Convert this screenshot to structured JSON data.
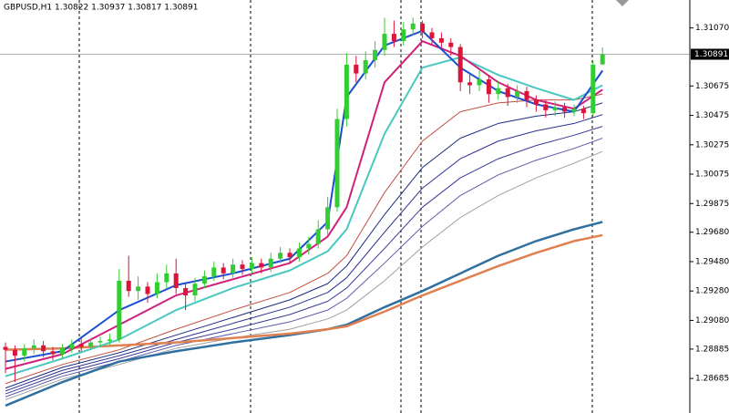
{
  "chart_data": {
    "type": "candlestick",
    "title": "GBPUSD,H1  1.30822 1.30937 1.30817 1.30891",
    "up_color": "#32cd32",
    "down_color": "#dc143c",
    "ylim": [
      1.2845,
      1.3126
    ],
    "yticks": [
      {
        "value": 1.3107,
        "label": "1.31070"
      },
      {
        "value": 1.30675,
        "label": "1.30675"
      },
      {
        "value": 1.30475,
        "label": "1.30475"
      },
      {
        "value": 1.30275,
        "label": "1.30275"
      },
      {
        "value": 1.30075,
        "label": "1.30075"
      },
      {
        "value": 1.29875,
        "label": "1.29875"
      },
      {
        "value": 1.2968,
        "label": "1.29680"
      },
      {
        "value": 1.2948,
        "label": "1.29480"
      },
      {
        "value": 1.2928,
        "label": "1.29280"
      },
      {
        "value": 1.2908,
        "label": "1.29080"
      },
      {
        "value": 1.28885,
        "label": "1.28885"
      },
      {
        "value": 1.28685,
        "label": "1.28685"
      }
    ],
    "current_price": {
      "value": 1.30891,
      "label": "1.30891"
    },
    "open": [
      1.289,
      1.2888,
      1.2884,
      1.2889,
      1.2891,
      1.2887,
      1.2885,
      1.2889,
      1.2892,
      1.289,
      1.2893,
      1.2894,
      1.2895,
      1.2935,
      1.2928,
      1.2931,
      1.2926,
      1.2934,
      1.294,
      1.293,
      1.2925,
      1.2933,
      1.2938,
      1.2944,
      1.294,
      1.2946,
      1.2943,
      1.2947,
      1.2944,
      1.295,
      1.2954,
      1.2951,
      1.2957,
      1.296,
      1.297,
      1.2985,
      1.3045,
      1.3082,
      1.3076,
      1.3085,
      1.3092,
      1.3103,
      1.3098,
      1.3106,
      1.311,
      1.3104,
      1.31,
      1.3097,
      1.3094,
      1.307,
      1.3068,
      1.3072,
      1.3062,
      1.3066,
      1.306,
      1.3064,
      1.3058,
      1.3055,
      1.3051,
      1.3053,
      1.305,
      1.3052,
      1.3049,
      1.30822
    ],
    "high": [
      1.2893,
      1.2891,
      1.2892,
      1.2895,
      1.2894,
      1.289,
      1.2892,
      1.2895,
      1.2896,
      1.2896,
      1.2897,
      1.2899,
      1.2943,
      1.2952,
      1.2938,
      1.2934,
      1.294,
      1.2946,
      1.295,
      1.2933,
      1.2937,
      1.2942,
      1.2948,
      1.2947,
      1.295,
      1.2949,
      1.2951,
      1.295,
      1.2954,
      1.2958,
      1.2957,
      1.2961,
      1.2965,
      1.2976,
      1.2992,
      1.3052,
      1.309,
      1.3088,
      1.3091,
      1.3098,
      1.3114,
      1.3112,
      1.3111,
      1.3114,
      1.3112,
      1.3107,
      1.3104,
      1.31,
      1.3096,
      1.3076,
      1.3078,
      1.3075,
      1.3071,
      1.3069,
      1.3068,
      1.3067,
      1.3061,
      1.3058,
      1.3057,
      1.3056,
      1.3055,
      1.3054,
      1.3085,
      1.30937
    ],
    "low": [
      1.2872,
      1.2866,
      1.288,
      1.2885,
      1.2883,
      1.2881,
      1.2882,
      1.2886,
      1.2887,
      1.2888,
      1.289,
      1.2891,
      1.2893,
      1.2924,
      1.2922,
      1.292,
      1.2923,
      1.293,
      1.2926,
      1.2915,
      1.2921,
      1.293,
      1.2935,
      1.2936,
      1.2937,
      1.2939,
      1.294,
      1.294,
      1.2941,
      1.2947,
      1.2947,
      1.2948,
      1.2953,
      1.2957,
      1.2966,
      1.2982,
      1.304,
      1.307,
      1.3072,
      1.308,
      1.3088,
      1.3094,
      1.3095,
      1.3102,
      1.31,
      1.3096,
      1.3093,
      1.3088,
      1.3064,
      1.3062,
      1.3064,
      1.3056,
      1.3058,
      1.3054,
      1.3056,
      1.3053,
      1.305,
      1.3046,
      1.3047,
      1.3046,
      1.3047,
      1.3045,
      1.3047,
      1.30817
    ],
    "close": [
      1.2888,
      1.2884,
      1.2889,
      1.2891,
      1.2887,
      1.2885,
      1.2889,
      1.2892,
      1.289,
      1.2893,
      1.2894,
      1.2895,
      1.2935,
      1.2928,
      1.2931,
      1.2926,
      1.2934,
      1.294,
      1.293,
      1.2925,
      1.2933,
      1.2938,
      1.2944,
      1.294,
      1.2946,
      1.2943,
      1.2947,
      1.2944,
      1.295,
      1.2954,
      1.2951,
      1.2957,
      1.296,
      1.297,
      1.2985,
      1.3045,
      1.3082,
      1.3076,
      1.3085,
      1.3092,
      1.3103,
      1.3098,
      1.3106,
      1.311,
      1.3104,
      1.31,
      1.3097,
      1.3094,
      1.307,
      1.3068,
      1.3072,
      1.3062,
      1.3066,
      1.306,
      1.3064,
      1.3058,
      1.3055,
      1.3051,
      1.3053,
      1.305,
      1.3052,
      1.3049,
      1.3082,
      1.30891
    ],
    "ma_x": [
      0,
      6,
      12,
      18,
      24,
      30,
      34,
      36,
      40,
      44,
      48,
      52,
      56,
      60,
      63
    ],
    "series": [
      {
        "color": "#a0a0a0",
        "width": 1,
        "values": [
          1.2854,
          1.2868,
          1.2878,
          1.2889,
          1.2896,
          1.2902,
          1.2909,
          1.2915,
          1.2935,
          1.2958,
          1.2978,
          1.2993,
          1.3005,
          1.3015,
          1.3023
        ]
      },
      {
        "color": "#5a5aa8",
        "width": 1,
        "values": [
          1.2856,
          1.287,
          1.288,
          1.2891,
          1.2899,
          1.2907,
          1.2915,
          1.2923,
          1.2947,
          1.2972,
          1.2993,
          1.3007,
          1.3017,
          1.3025,
          1.3032
        ]
      },
      {
        "color": "#3a3a98",
        "width": 1,
        "values": [
          1.2858,
          1.2872,
          1.2882,
          1.2893,
          1.2902,
          1.2912,
          1.2921,
          1.293,
          1.2957,
          1.2985,
          1.3005,
          1.3018,
          1.3027,
          1.3034,
          1.304
        ]
      },
      {
        "color": "#2a3090",
        "width": 1,
        "values": [
          1.286,
          1.2874,
          1.2884,
          1.2895,
          1.2906,
          1.2917,
          1.2927,
          1.2937,
          1.2968,
          1.2998,
          1.3018,
          1.303,
          1.3037,
          1.3042,
          1.3048
        ]
      },
      {
        "color": "#1a2a80",
        "width": 1,
        "values": [
          1.2862,
          1.2876,
          1.2886,
          1.2898,
          1.291,
          1.2922,
          1.2933,
          1.2945,
          1.298,
          1.3012,
          1.3032,
          1.3042,
          1.3047,
          1.305,
          1.3056
        ]
      },
      {
        "color": "#c05040",
        "width": 1,
        "values": [
          1.2865,
          1.2878,
          1.2888,
          1.2902,
          1.2915,
          1.2927,
          1.294,
          1.2952,
          1.2995,
          1.303,
          1.305,
          1.3056,
          1.3058,
          1.3058,
          1.3062
        ]
      },
      {
        "color": "#3070a0",
        "width": 2.5,
        "values": [
          1.285,
          1.2866,
          1.288,
          1.2887,
          1.2893,
          1.2898,
          1.2902,
          1.2905,
          1.2917,
          1.2928,
          1.294,
          1.2952,
          1.2962,
          1.297,
          1.2975
        ]
      },
      {
        "color": "#e08050",
        "width": 2.5,
        "values": [
          1.2888,
          1.2889,
          1.2891,
          1.2893,
          1.2896,
          1.2899,
          1.2902,
          1.2904,
          1.2914,
          1.2925,
          1.2935,
          1.2945,
          1.2954,
          1.2962,
          1.2966
        ]
      },
      {
        "color": "#48c8c0",
        "width": 2,
        "values": [
          1.287,
          1.2882,
          1.2895,
          1.2915,
          1.293,
          1.2942,
          1.2955,
          1.297,
          1.3035,
          1.308,
          1.3087,
          1.3075,
          1.3066,
          1.3058,
          1.3068
        ]
      },
      {
        "color": "#d0207a",
        "width": 2,
        "values": [
          1.2875,
          1.2885,
          1.2905,
          1.2925,
          1.2936,
          1.2947,
          1.2965,
          1.2985,
          1.307,
          1.3098,
          1.3088,
          1.307,
          1.3058,
          1.3052,
          1.3065
        ]
      },
      {
        "color": "#1a4fd0",
        "width": 2,
        "values": [
          1.288,
          1.2887,
          1.2915,
          1.2932,
          1.294,
          1.295,
          1.2975,
          1.306,
          1.3095,
          1.3105,
          1.308,
          1.3064,
          1.3055,
          1.305,
          1.3078
        ]
      }
    ]
  }
}
